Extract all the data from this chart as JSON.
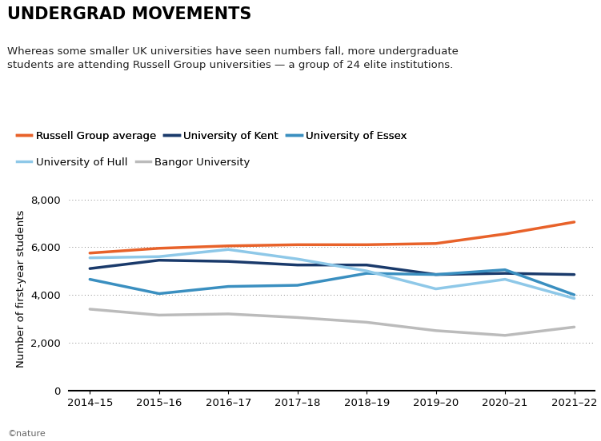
{
  "title": "UNDERGRAD MOVEMENTS",
  "subtitle": "Whereas some smaller UK universities have seen numbers fall, more undergraduate\nstudents are attending Russell Group universities — a group of 24 elite institutions.",
  "ylabel": "Number of first-year students",
  "x_labels": [
    "2014–15",
    "2015–16",
    "2016–17",
    "2017–18",
    "2018–19",
    "2019–20",
    "2020–21",
    "2021–22"
  ],
  "ylim": [
    0,
    8500
  ],
  "yticks": [
    0,
    2000,
    4000,
    6000,
    8000
  ],
  "series": [
    {
      "name": "Russell Group average",
      "color": "#E8622A",
      "linewidth": 2.5,
      "values": [
        5750,
        5950,
        6050,
        6100,
        6100,
        6150,
        6550,
        7050
      ]
    },
    {
      "name": "University of Kent",
      "color": "#1A3A6B",
      "linewidth": 2.5,
      "values": [
        5100,
        5450,
        5400,
        5250,
        5250,
        4850,
        4900,
        4850
      ]
    },
    {
      "name": "University of Essex",
      "color": "#3A8FC0",
      "linewidth": 2.5,
      "values": [
        4650,
        4050,
        4350,
        4400,
        4900,
        4850,
        5050,
        4000
      ]
    },
    {
      "name": "University of Hull",
      "color": "#8EC8E8",
      "linewidth": 2.5,
      "values": [
        5550,
        5600,
        5900,
        5500,
        5000,
        4250,
        4650,
        3850
      ]
    },
    {
      "name": "Bangor University",
      "color": "#BBBBBB",
      "linewidth": 2.5,
      "values": [
        3400,
        3150,
        3200,
        3050,
        2850,
        2500,
        2300,
        2650
      ]
    }
  ],
  "footer": "©nature",
  "background_color": "#ffffff",
  "grid_color": "#555555",
  "title_fontsize": 15,
  "subtitle_fontsize": 9.5,
  "ylabel_fontsize": 9.5,
  "tick_fontsize": 9.5,
  "legend_fontsize": 9.5
}
